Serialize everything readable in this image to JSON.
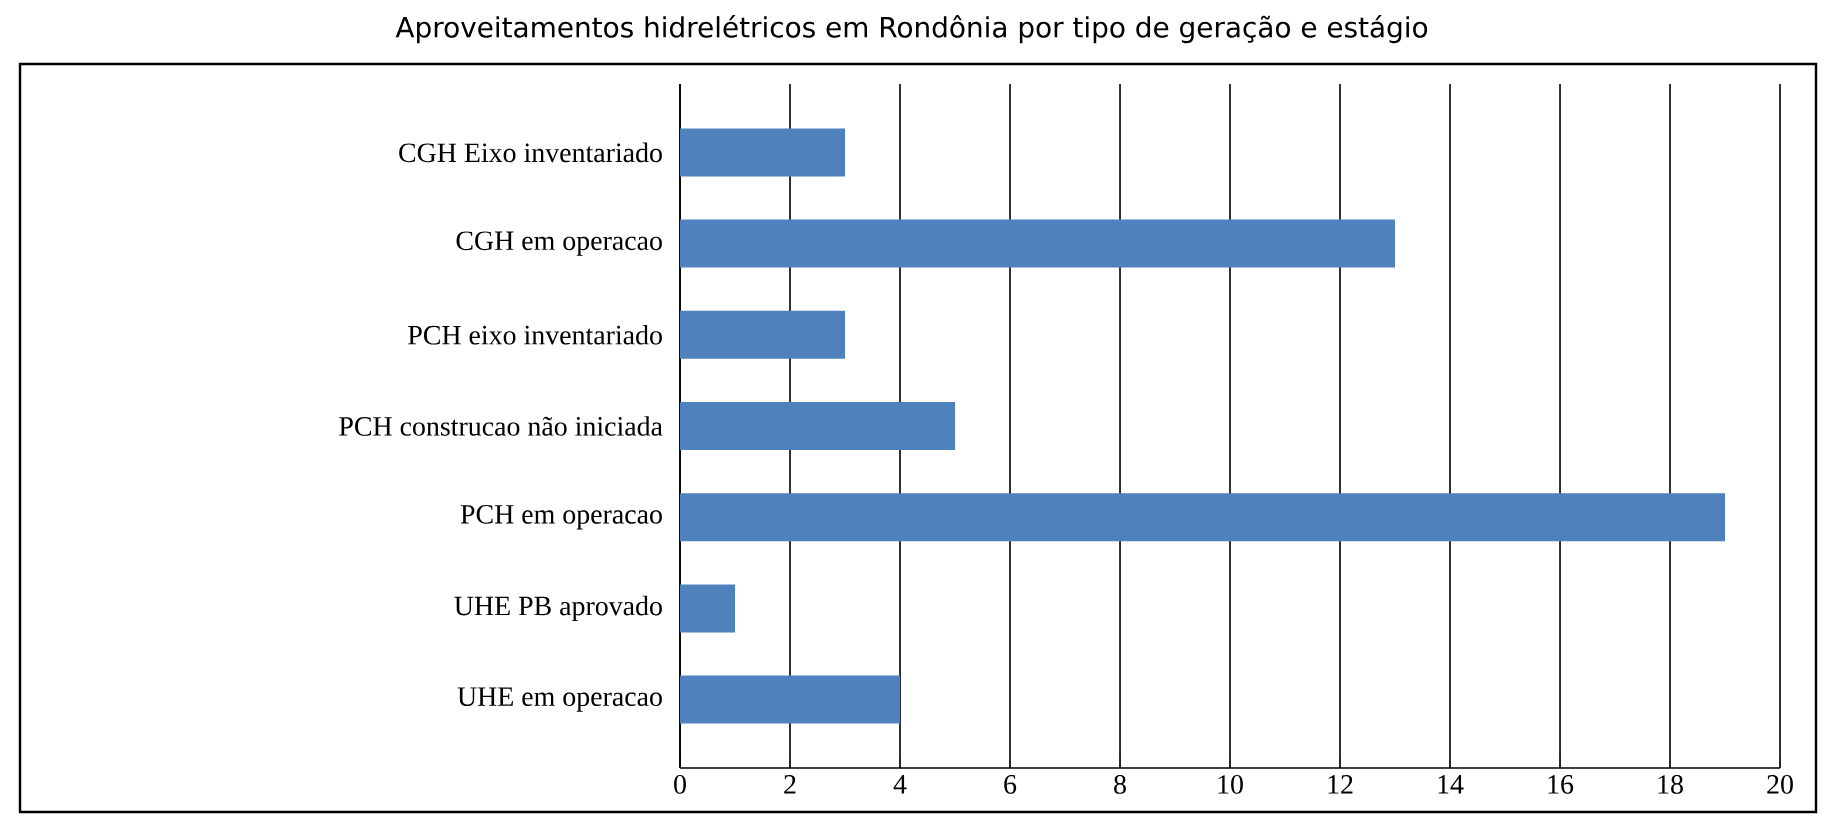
{
  "chart_data": {
    "type": "bar",
    "orientation": "horizontal",
    "title": "Aproveitamentos hidrelétricos em Rondônia por tipo de geração e estágio",
    "categories": [
      "CGH Eixo inventariado",
      "CGH em operacao",
      "PCH eixo inventariado",
      "PCH construcao não iniciada",
      "PCH em operacao",
      "UHE PB aprovado",
      "UHE em operacao"
    ],
    "values": [
      3,
      13,
      3,
      5,
      19,
      1,
      4
    ],
    "color": "#4f81bd",
    "xlim": [
      0,
      20
    ],
    "xticks": [
      0,
      2,
      4,
      6,
      8,
      10,
      12,
      14,
      16,
      18,
      20
    ],
    "grid": "x"
  }
}
